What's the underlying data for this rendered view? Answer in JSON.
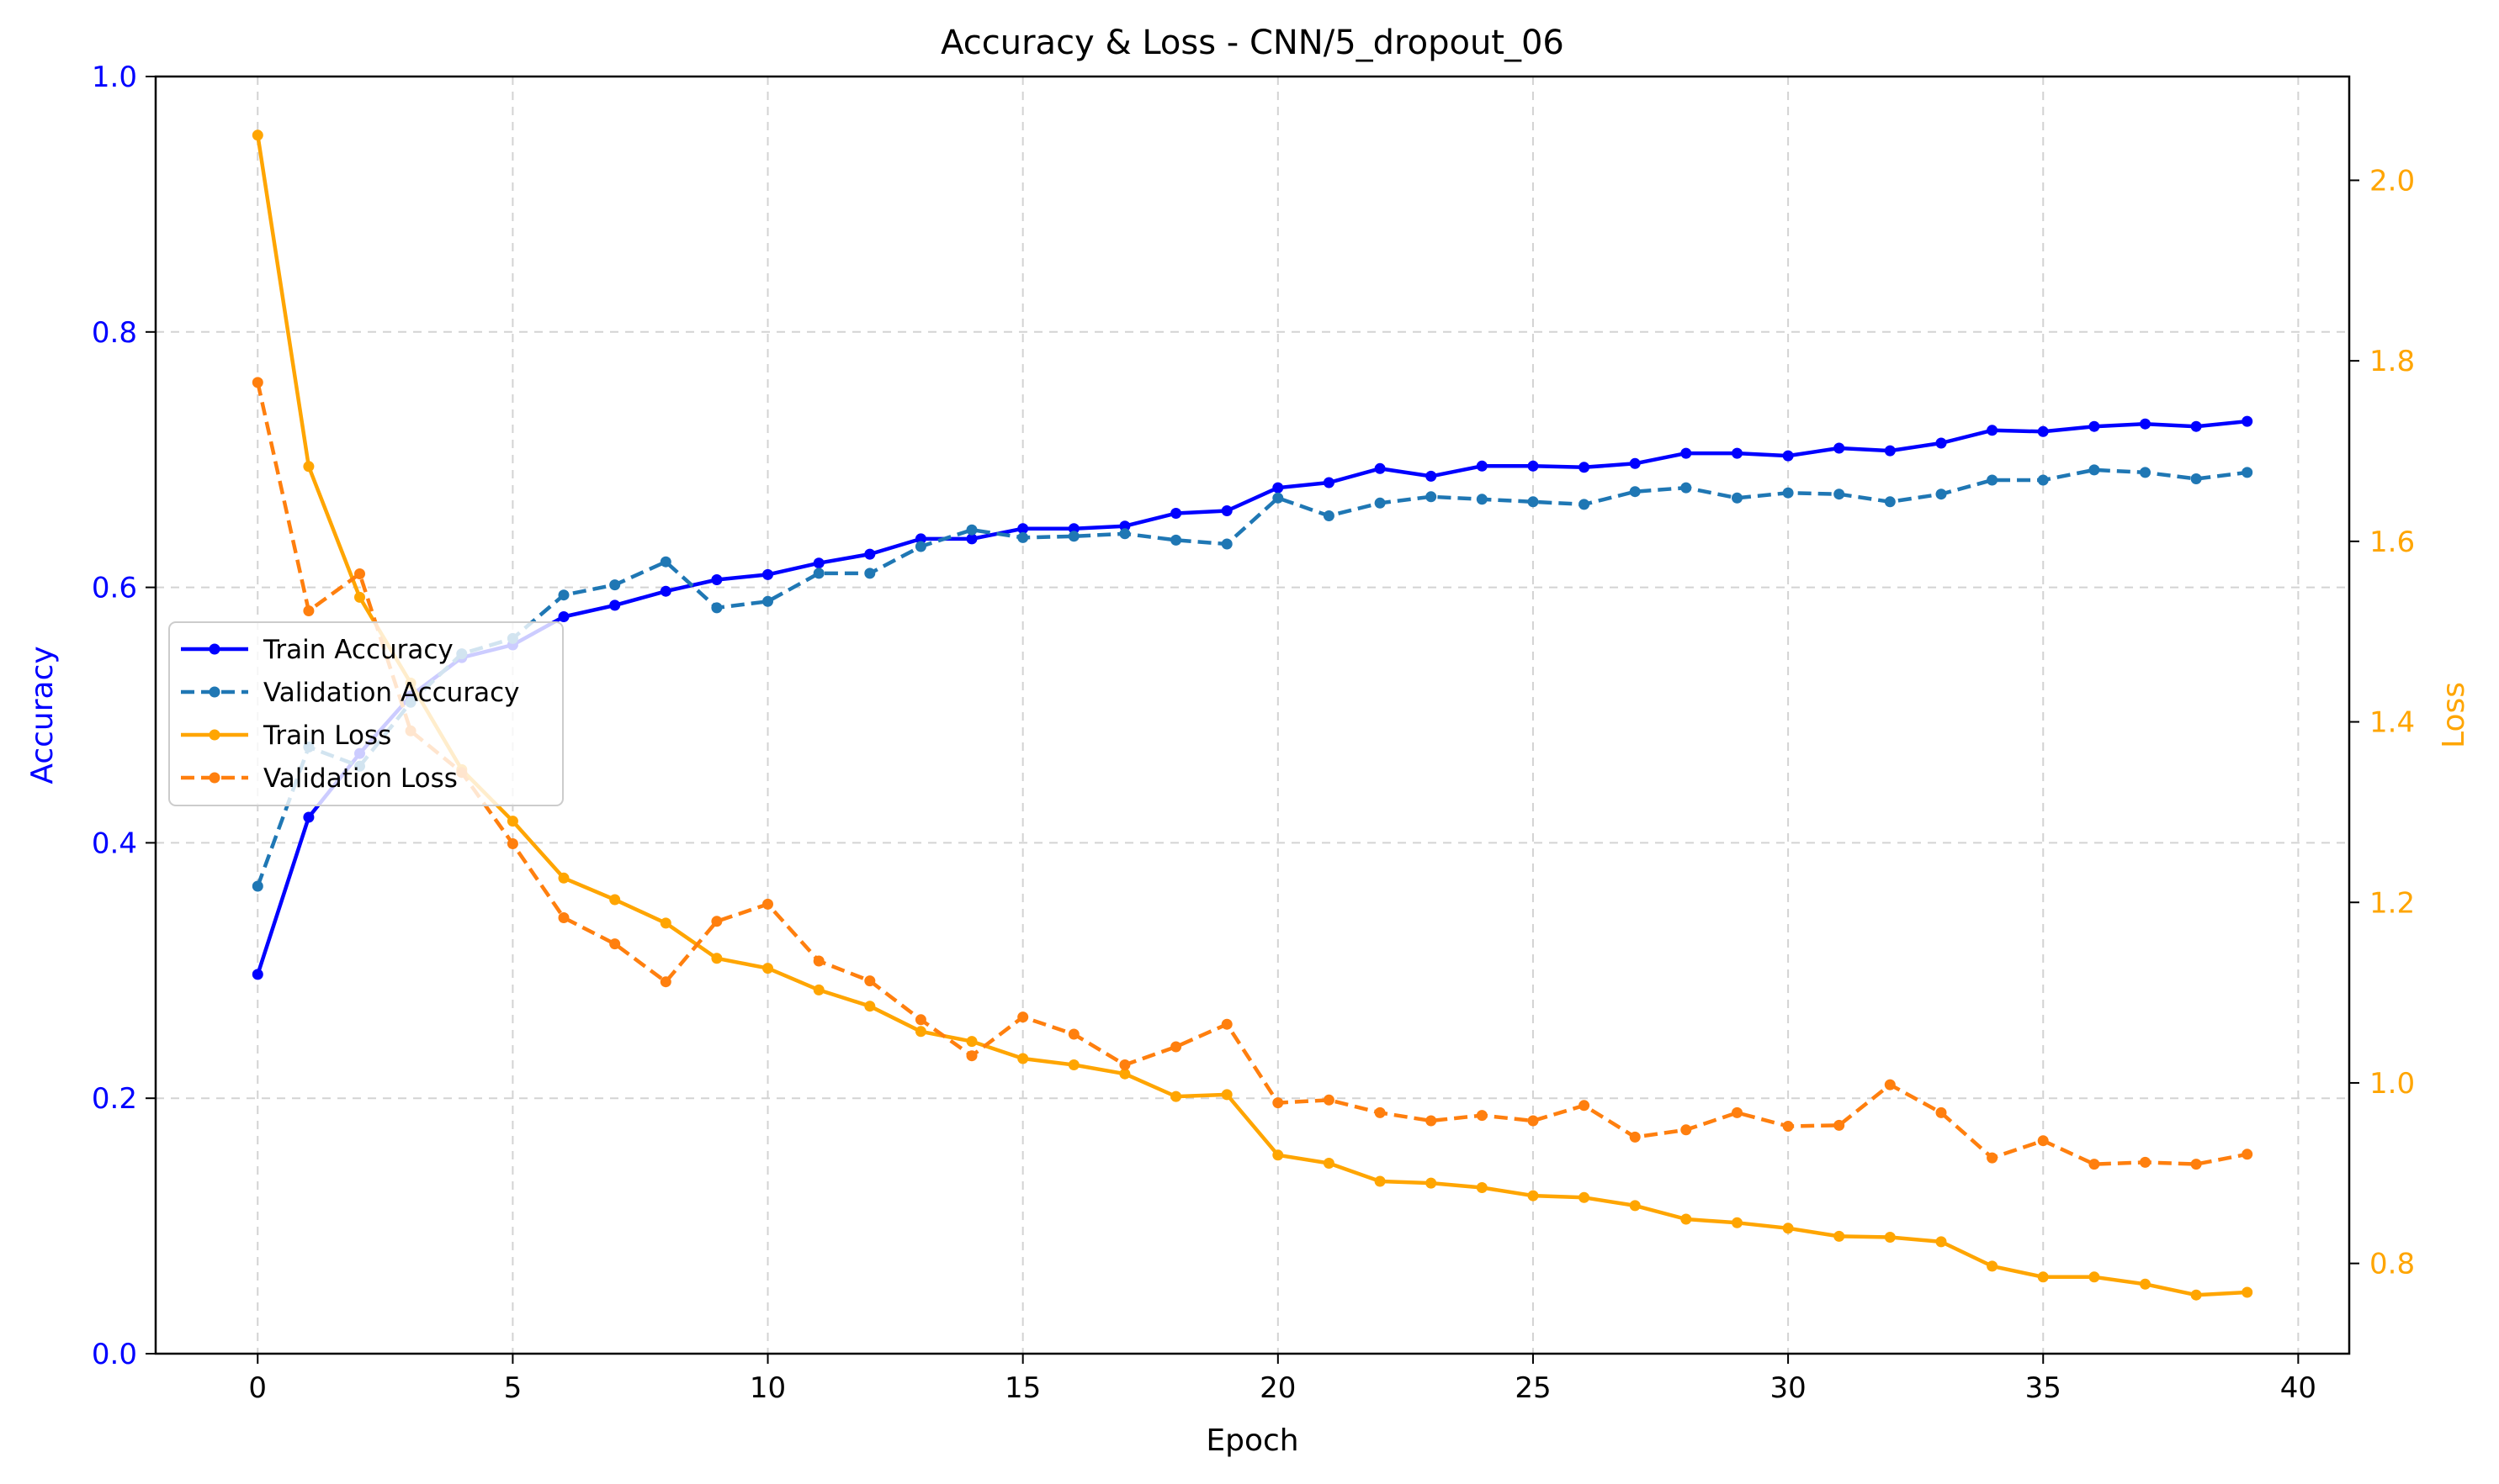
{
  "chart_data": {
    "type": "line",
    "title": "Accuracy & Loss - CNN/5_dropout_06",
    "xlabel": "Epoch",
    "ylabel_left": "Accuracy",
    "ylabel_right": "Loss",
    "xlim": [
      -2,
      41
    ],
    "xticks": [
      0,
      5,
      10,
      15,
      20,
      25,
      30,
      35,
      40
    ],
    "ylim_left": [
      0,
      1.0
    ],
    "yticks_left": [
      "0.0",
      "0.2",
      "0.4",
      "0.6",
      "0.8",
      "1.0"
    ],
    "ylim_right": [
      0.7,
      2.115
    ],
    "yticks_right": [
      "0.8",
      "1.0",
      "1.2",
      "1.4",
      "1.6",
      "1.8",
      "2.0"
    ],
    "grid": true,
    "legend_position": "center-left",
    "colors": {
      "left_axis": "#0000ff",
      "right_axis": "#ffa500",
      "grid": "#d3d3d3"
    },
    "x": [
      0,
      1,
      2,
      3,
      4,
      5,
      6,
      7,
      8,
      9,
      10,
      11,
      12,
      13,
      14,
      15,
      16,
      17,
      18,
      19,
      20,
      21,
      22,
      23,
      24,
      25,
      26,
      27,
      28,
      29,
      30,
      31,
      32,
      33,
      34,
      35,
      36,
      37,
      38,
      39
    ],
    "series": [
      {
        "name": "Train Accuracy",
        "axis": "left",
        "style": "solid",
        "color": "#0000ff",
        "values": [
          0.297,
          0.42,
          0.47,
          0.515,
          0.545,
          0.555,
          0.577,
          0.586,
          0.597,
          0.606,
          0.61,
          0.619,
          0.626,
          0.638,
          0.638,
          0.646,
          0.646,
          0.648,
          0.658,
          0.66,
          0.678,
          0.682,
          0.693,
          0.687,
          0.695,
          0.695,
          0.694,
          0.697,
          0.705,
          0.705,
          0.703,
          0.709,
          0.707,
          0.713,
          0.723,
          0.722,
          0.726,
          0.728,
          0.726,
          0.73
        ]
      },
      {
        "name": "Validation Accuracy",
        "axis": "left",
        "style": "dashed",
        "color": "#1f77b4",
        "values": [
          0.366,
          0.475,
          0.46,
          0.51,
          0.548,
          0.56,
          0.594,
          0.602,
          0.62,
          0.584,
          0.589,
          0.611,
          0.611,
          0.632,
          0.645,
          0.639,
          0.64,
          0.642,
          0.637,
          0.634,
          0.67,
          0.656,
          0.666,
          0.671,
          0.669,
          0.667,
          0.665,
          0.675,
          0.678,
          0.67,
          0.674,
          0.673,
          0.667,
          0.673,
          0.684,
          0.684,
          0.692,
          0.69,
          0.685,
          0.69
        ]
      },
      {
        "name": "Train Loss",
        "axis": "right",
        "style": "solid",
        "color": "#ffa500",
        "values": [
          2.05,
          1.683,
          1.538,
          1.443,
          1.347,
          1.29,
          1.227,
          1.203,
          1.177,
          1.138,
          1.127,
          1.103,
          1.085,
          1.057,
          1.046,
          1.027,
          1.02,
          1.01,
          0.985,
          0.987,
          0.92,
          0.911,
          0.891,
          0.889,
          0.884,
          0.875,
          0.873,
          0.864,
          0.849,
          0.845,
          0.839,
          0.83,
          0.829,
          0.824,
          0.797,
          0.785,
          0.785,
          0.777,
          0.765,
          0.768
        ]
      },
      {
        "name": "Validation Loss",
        "axis": "right",
        "style": "dashed",
        "color": "#ff7f0e",
        "values": [
          1.776,
          1.523,
          1.564,
          1.39,
          1.344,
          1.265,
          1.183,
          1.154,
          1.112,
          1.179,
          1.198,
          1.135,
          1.113,
          1.07,
          1.03,
          1.073,
          1.054,
          1.02,
          1.04,
          1.065,
          0.978,
          0.981,
          0.967,
          0.958,
          0.964,
          0.958,
          0.975,
          0.94,
          0.948,
          0.967,
          0.952,
          0.953,
          0.998,
          0.967,
          0.917,
          0.936,
          0.91,
          0.912,
          0.91,
          0.921
        ]
      }
    ]
  }
}
